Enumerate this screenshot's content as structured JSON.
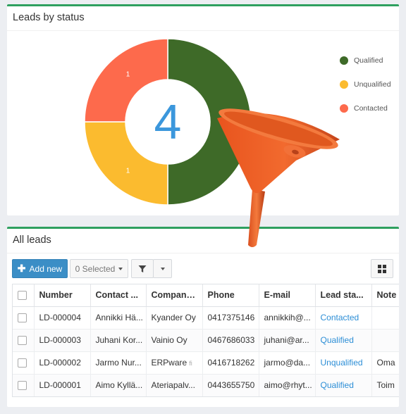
{
  "chart_panel": {
    "title": "Leads by status",
    "center_value": "4"
  },
  "chart_data": {
    "type": "pie",
    "categories": [
      "Qualified",
      "Unqualified",
      "Contacted"
    ],
    "values": [
      2,
      1,
      1
    ],
    "slice_labels": [
      "",
      "1",
      "1"
    ],
    "colors": [
      "#3e6a28",
      "#fbbb2f",
      "#fd6a4c"
    ],
    "legend_position": "right"
  },
  "legend": [
    {
      "label": "Qualified",
      "color": "#3e6a28"
    },
    {
      "label": "Unqualified",
      "color": "#fbbb2f"
    },
    {
      "label": "Contacted",
      "color": "#fd6a4c"
    }
  ],
  "table_panel": {
    "title": "All leads",
    "add_new_label": "Add new",
    "selected_label": "0 Selected"
  },
  "table": {
    "columns": [
      "Number",
      "Contact ...",
      "Company...",
      "Phone",
      "E-mail",
      "Lead sta...",
      "Note"
    ],
    "rows": [
      {
        "number": "LD-000004",
        "contact": "Annikki Hä...",
        "company": "Kyander Oy",
        "company_note": "",
        "phone": "0417375146",
        "email": "annikkih@...",
        "status": "Contacted",
        "note": ""
      },
      {
        "number": "LD-000003",
        "contact": "Juhani Kor...",
        "company": "Vainio Oy",
        "company_note": "",
        "phone": "0467686033",
        "email": "juhani@ar...",
        "status": "Qualified",
        "note": ""
      },
      {
        "number": "LD-000002",
        "contact": "Jarmo Nur...",
        "company": "ERPware",
        "company_note": "fi",
        "phone": "0416718262",
        "email": "jarmo@da...",
        "status": "Unqualified",
        "note": "Oma"
      },
      {
        "number": "LD-000001",
        "contact": "Aimo Kyllä...",
        "company": "Ateriapalv...",
        "company_note": "",
        "phone": "0443655750",
        "email": "aimo@rhyt...",
        "status": "Qualified",
        "note": "Toim"
      }
    ]
  },
  "colors": {
    "accent": "#2ea05f",
    "primary_button": "#3b8ec6",
    "link": "#2c8ed6",
    "funnel": "#f06028"
  }
}
